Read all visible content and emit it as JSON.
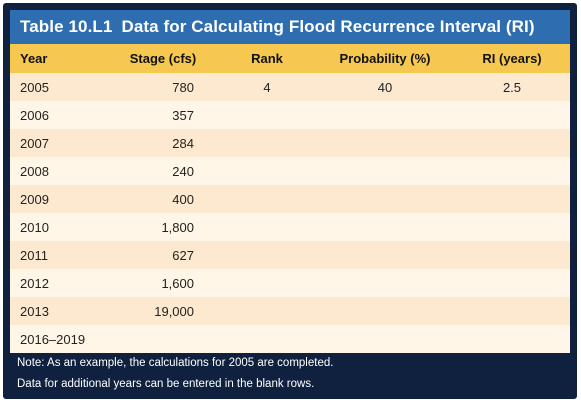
{
  "title": {
    "number": "Table 10.L1",
    "text": "Data for Calculating Flood Recurrence Interval (RI)"
  },
  "columns": [
    "Year",
    "Stage (cfs)",
    "Rank",
    "Probability (%)",
    "RI (years)"
  ],
  "rows": [
    {
      "year": "2005",
      "stage": "780",
      "rank": "4",
      "probability": "40",
      "ri": "2.5"
    },
    {
      "year": "2006",
      "stage": "357",
      "rank": "",
      "probability": "",
      "ri": ""
    },
    {
      "year": "2007",
      "stage": "284",
      "rank": "",
      "probability": "",
      "ri": ""
    },
    {
      "year": "2008",
      "stage": "240",
      "rank": "",
      "probability": "",
      "ri": ""
    },
    {
      "year": "2009",
      "stage": "400",
      "rank": "",
      "probability": "",
      "ri": ""
    },
    {
      "year": "2010",
      "stage": "1,800",
      "rank": "",
      "probability": "",
      "ri": ""
    },
    {
      "year": "2011",
      "stage": "627",
      "rank": "",
      "probability": "",
      "ri": ""
    },
    {
      "year": "2012",
      "stage": "1,600",
      "rank": "",
      "probability": "",
      "ri": ""
    },
    {
      "year": "2013",
      "stage": "19,000",
      "rank": "",
      "probability": "",
      "ri": ""
    },
    {
      "year": "2016–2019",
      "stage": "",
      "rank": "",
      "probability": "",
      "ri": ""
    }
  ],
  "notes": [
    "Note: As an example, the calculations for 2005 are completed.",
    "Data for additional years can be entered in the blank rows."
  ],
  "colors": {
    "frame": "#10213f",
    "title_bar": "#2d6db0",
    "header_row": "#f6c84f",
    "row_odd": "#fde9cf",
    "row_even": "#fff6e8"
  }
}
